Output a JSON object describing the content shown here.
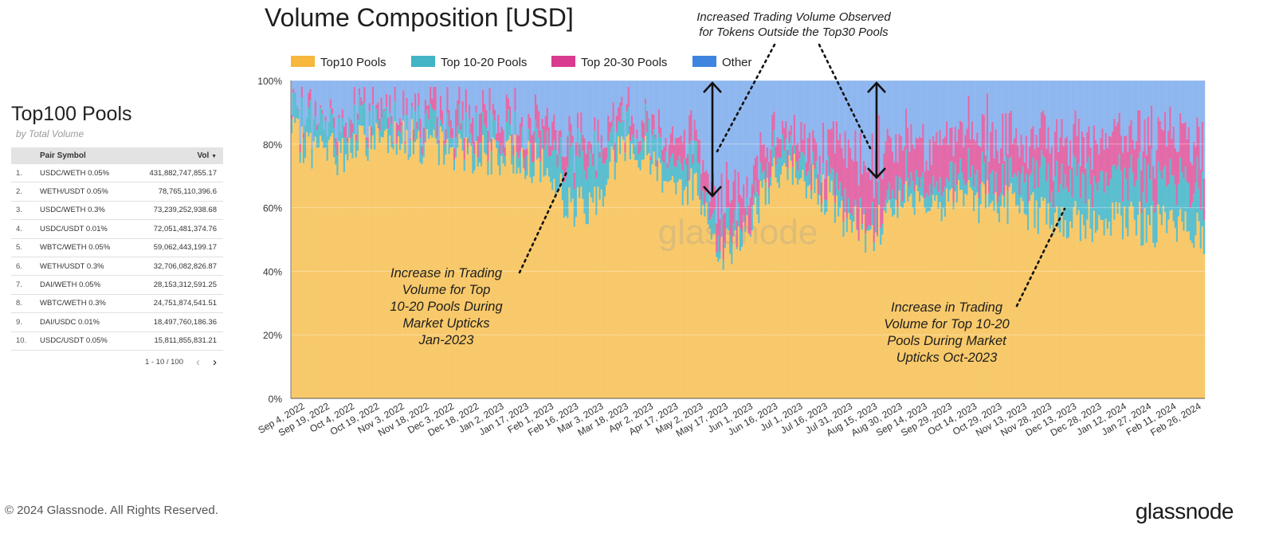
{
  "chart_title": "Volume Composition [USD]",
  "table": {
    "title": "Top100 Pools",
    "subtitle": "by Total Volume",
    "col_pair": "Pair Symbol",
    "col_vol": "Vol",
    "rows": [
      {
        "rank": "1.",
        "pair": "USDC/WETH 0.05%",
        "vol": "431,882,747,855.17"
      },
      {
        "rank": "2.",
        "pair": "WETH/USDT 0.05%",
        "vol": "78,765,110,396.6"
      },
      {
        "rank": "3.",
        "pair": "USDC/WETH 0.3%",
        "vol": "73,239,252,938.68"
      },
      {
        "rank": "4.",
        "pair": "USDC/USDT 0.01%",
        "vol": "72,051,481,374.76"
      },
      {
        "rank": "5.",
        "pair": "WBTC/WETH 0.05%",
        "vol": "59,062,443,199.17"
      },
      {
        "rank": "6.",
        "pair": "WETH/USDT 0.3%",
        "vol": "32,706,082,826.87"
      },
      {
        "rank": "7.",
        "pair": "DAI/WETH 0.05%",
        "vol": "28,153,312,591.25"
      },
      {
        "rank": "8.",
        "pair": "WBTC/WETH 0.3%",
        "vol": "24,751,874,541.51"
      },
      {
        "rank": "9.",
        "pair": "DAI/USDC 0.01%",
        "vol": "18,497,760,186.36"
      },
      {
        "rank": "10.",
        "pair": "USDC/USDT 0.05%",
        "vol": "15,811,855,831.21"
      }
    ],
    "pager_text": "1 - 10 / 100"
  },
  "footer": "© 2024 Glassnode. All Rights Reserved.",
  "brand": "glassnode",
  "watermark": "glassnode",
  "colors": {
    "top10": "#f8c96a",
    "top10_20": "#5bbfcf",
    "top20_30": "#e36aa8",
    "other": "#8fb7ef",
    "legend_top10": "#f6b73c",
    "legend_top10_20": "#43b3c6",
    "legend_top20_30": "#d93b8f",
    "legend_other": "#3f85e0"
  },
  "chart_data": {
    "type": "area",
    "stacked": true,
    "percent": true,
    "title": "Volume Composition [USD]",
    "y_ticks": [
      "0%",
      "20%",
      "40%",
      "60%",
      "80%",
      "100%"
    ],
    "ylim": [
      0,
      100
    ],
    "x": [
      "Sep 4, 2022",
      "Sep 19, 2022",
      "Oct 4, 2022",
      "Oct 19, 2022",
      "Nov 3, 2022",
      "Nov 18, 2022",
      "Dec 3, 2022",
      "Dec 18, 2022",
      "Jan 2, 2023",
      "Jan 17, 2023",
      "Feb 1, 2023",
      "Feb 16, 2023",
      "Mar 3, 2023",
      "Mar 18, 2023",
      "Apr 2, 2023",
      "Apr 17, 2023",
      "May 2, 2023",
      "May 17, 2023",
      "Jun 1, 2023",
      "Jun 16, 2023",
      "Jul 1, 2023",
      "Jul 16, 2023",
      "Jul 31, 2023",
      "Aug 15, 2023",
      "Aug 30, 2023",
      "Sep 14, 2023",
      "Sep 29, 2023",
      "Oct 14, 2023",
      "Oct 29, 2023",
      "Nov 13, 2023",
      "Nov 28, 2023",
      "Dec 13, 2023",
      "Dec 28, 2023",
      "Jan 12, 2024",
      "Jan 27, 2024",
      "Feb 11, 2024",
      "Feb 26, 2024"
    ],
    "legend": [
      "Top10 Pools",
      "Top 10-20 Pools",
      "Top 20-30 Pools",
      "Other"
    ],
    "legend_position": "top",
    "series": [
      {
        "name": "Top10 Pools",
        "values": [
          82,
          78,
          77,
          81,
          84,
          80,
          79,
          78,
          75,
          77,
          72,
          60,
          62,
          80,
          76,
          68,
          66,
          46,
          54,
          70,
          70,
          65,
          54,
          52,
          64,
          64,
          62,
          62,
          62,
          60,
          56,
          56,
          56,
          56,
          54,
          54,
          52
        ]
      },
      {
        "name": "Top 10-20 Pools",
        "values": [
          6,
          8,
          8,
          7,
          4,
          6,
          6,
          6,
          6,
          6,
          8,
          16,
          14,
          6,
          8,
          8,
          8,
          4,
          4,
          6,
          6,
          6,
          4,
          4,
          6,
          6,
          6,
          6,
          6,
          10,
          12,
          14,
          14,
          14,
          14,
          14,
          14
        ]
      },
      {
        "name": "Top 20-30 Pools",
        "values": [
          1,
          2,
          2,
          2,
          4,
          4,
          5,
          5,
          6,
          6,
          6,
          6,
          6,
          4,
          4,
          6,
          6,
          12,
          10,
          6,
          6,
          10,
          18,
          18,
          14,
          12,
          14,
          14,
          14,
          10,
          12,
          12,
          12,
          12,
          14,
          14,
          16
        ]
      },
      {
        "name": "Other",
        "values": [
          11,
          12,
          13,
          10,
          8,
          10,
          10,
          11,
          13,
          11,
          14,
          18,
          18,
          10,
          12,
          18,
          20,
          38,
          32,
          18,
          18,
          19,
          24,
          26,
          16,
          18,
          18,
          18,
          18,
          20,
          20,
          18,
          18,
          18,
          18,
          18,
          18
        ]
      }
    ],
    "annotations": [
      {
        "text": [
          "Increased Trading Volume Observed",
          "for Tokens Outside the Top30 Pools"
        ]
      },
      {
        "text": [
          "Increase in Trading",
          "Volume for Top",
          "10-20 Pools During",
          "Market Upticks",
          "Jan-2023"
        ]
      },
      {
        "text": [
          "Increase in Trading",
          "Volume for Top 10-20",
          "Pools During Market",
          "Upticks Oct-2023"
        ]
      }
    ]
  }
}
